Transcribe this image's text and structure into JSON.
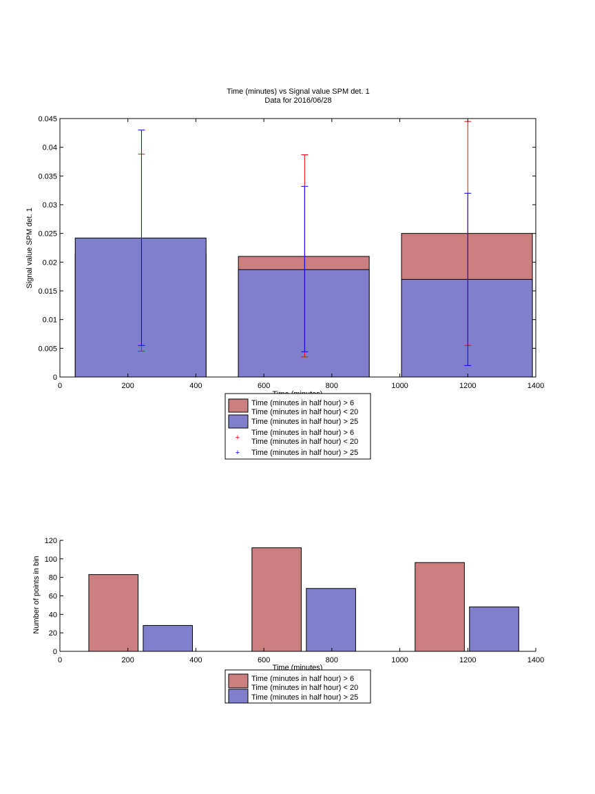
{
  "chart_data": [
    {
      "type": "bar",
      "title": "Time (minutes) vs Signal value SPM det. 1",
      "subtitle": "Data for 2016/06/28",
      "xlabel": "Time (minutes)",
      "ylabel": "Signal value SPM det. 1",
      "xlim": [
        0,
        1400
      ],
      "ylim": [
        0,
        0.045
      ],
      "xticks": [
        0,
        200,
        400,
        600,
        800,
        1000,
        1200,
        1400
      ],
      "xtick_labels": [
        "0",
        "200",
        "400",
        "600",
        "800",
        "1000",
        "1200",
        "1400"
      ],
      "yticks": [
        0,
        0.005,
        0.01,
        0.015,
        0.02,
        0.025,
        0.03,
        0.035,
        0.04,
        0.045
      ],
      "ytick_labels": [
        "0",
        "0.005",
        "0.01",
        "0.015",
        "0.02",
        "0.025",
        "0.03",
        "0.035",
        "0.04",
        "0.045"
      ],
      "grid": false,
      "legend_position": "below",
      "bar_layout": "overlaid",
      "categories": [
        240,
        720,
        1200
      ],
      "series": [
        {
          "name": [
            "Time (minutes in half hour) > 6",
            "Time (minutes in half hour) < 20"
          ],
          "color": "#cc7f7f",
          "edge": "#000000",
          "values": [
            0.0215,
            0.021,
            0.025
          ],
          "bar_extent": [
            [
              45,
              430
            ],
            [
              525,
              910
            ],
            [
              1005,
              1390
            ]
          ]
        },
        {
          "name": "Time (minutes in half hour) > 25",
          "color": "#7f7fcc",
          "edge": "#000000",
          "values": [
            0.0242,
            0.0187,
            0.017
          ],
          "bar_extent": [
            [
              45,
              430
            ],
            [
              525,
              910
            ],
            [
              1005,
              1390
            ]
          ]
        }
      ],
      "errorbars": [
        {
          "name": [
            "Time (minutes in half hour) > 6",
            "Time (minutes in half hour) < 20"
          ],
          "color": "#ff0000",
          "x": [
            240,
            720,
            1200
          ],
          "y": [
            0.0215,
            0.021,
            0.025
          ],
          "lower": [
            0.0045,
            0.0035,
            0.0055
          ],
          "upper": [
            0.0388,
            0.0387,
            0.0445
          ]
        },
        {
          "name": "Time (minutes in half hour) > 25",
          "color": "#0000ff",
          "x": [
            240,
            720,
            1200
          ],
          "y": [
            0.0242,
            0.0187,
            0.017
          ],
          "lower": [
            0.0055,
            0.0044,
            0.002
          ],
          "upper": [
            0.043,
            0.0332,
            0.032
          ]
        }
      ]
    },
    {
      "type": "bar",
      "title": "",
      "xlabel": "Time (minutes)",
      "ylabel": "Number of points in bin",
      "xlim": [
        0,
        1400
      ],
      "ylim": [
        0,
        120
      ],
      "xticks": [
        0,
        200,
        400,
        600,
        800,
        1000,
        1200,
        1400
      ],
      "xtick_labels": [
        "0",
        "200",
        "400",
        "600",
        "800",
        "1000",
        "1200",
        "1400"
      ],
      "yticks": [
        0,
        20,
        40,
        60,
        80,
        100,
        120
      ],
      "ytick_labels": [
        "0",
        "20",
        "40",
        "60",
        "80",
        "100",
        "120"
      ],
      "grid": false,
      "legend_position": "below",
      "bar_layout": "grouped",
      "series": [
        {
          "name": [
            "Time (minutes in half hour) > 6",
            "Time (minutes in half hour) < 20"
          ],
          "color": "#cc7f7f",
          "edge": "#000000",
          "x": [
            160,
            640,
            1120
          ],
          "values": [
            83,
            112,
            96
          ],
          "bar_extent": [
            [
              85,
              230
            ],
            [
              565,
              710
            ],
            [
              1045,
              1190
            ]
          ]
        },
        {
          "name": "Time (minutes in half hour) > 25",
          "color": "#7f7fcc",
          "edge": "#000000",
          "x": [
            320,
            800,
            1280
          ],
          "values": [
            28,
            68,
            48
          ],
          "bar_extent": [
            [
              245,
              390
            ],
            [
              725,
              870
            ],
            [
              1205,
              1350
            ]
          ]
        }
      ]
    }
  ]
}
